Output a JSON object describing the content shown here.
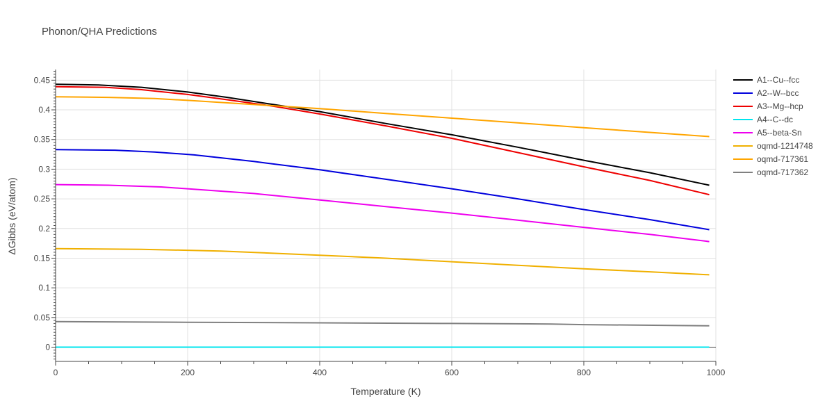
{
  "chart_data": {
    "type": "line",
    "title": "Phonon/QHA Predictions",
    "xlabel": "Temperature (K)",
    "ylabel": "ΔGibbs (eV/atom)",
    "xlim": [
      0,
      1000
    ],
    "ylim": [
      -0.024,
      0.468
    ],
    "xticks": [
      0,
      200,
      400,
      600,
      800,
      1000
    ],
    "xtick_labels": [
      "0",
      "200",
      "400",
      "600",
      "800",
      "1000"
    ],
    "yticks": [
      0,
      0.05,
      0.1,
      0.15,
      0.2,
      0.25,
      0.3,
      0.35,
      0.4,
      0.45
    ],
    "ytick_labels": [
      "0",
      "0.05",
      "0.1",
      "0.15",
      "0.2",
      "0.25",
      "0.3",
      "0.35",
      "0.4",
      "0.45"
    ],
    "grid": true,
    "legend_position": "right",
    "series": [
      {
        "name": "A1--Cu--fcc",
        "color": "#000000",
        "x": [
          0,
          65,
          130,
          200,
          260,
          330,
          400,
          500,
          600,
          700,
          800,
          900,
          990
        ],
        "y": [
          0.443,
          0.442,
          0.438,
          0.43,
          0.421,
          0.409,
          0.397,
          0.377,
          0.358,
          0.337,
          0.315,
          0.294,
          0.273
        ]
      },
      {
        "name": "A2--W--bcc",
        "color": "#0000dd",
        "x": [
          0,
          90,
          150,
          210,
          300,
          400,
          500,
          600,
          700,
          800,
          900,
          990
        ],
        "y": [
          0.333,
          0.332,
          0.329,
          0.324,
          0.313,
          0.299,
          0.283,
          0.267,
          0.25,
          0.232,
          0.215,
          0.198
        ]
      },
      {
        "name": "A3--Mg--hcp",
        "color": "#ee0000",
        "x": [
          0,
          75,
          130,
          200,
          260,
          330,
          400,
          500,
          600,
          700,
          800,
          900,
          990
        ],
        "y": [
          0.439,
          0.438,
          0.434,
          0.426,
          0.417,
          0.406,
          0.393,
          0.373,
          0.352,
          0.328,
          0.304,
          0.281,
          0.257
        ]
      },
      {
        "name": "A4--C--dc",
        "color": "#00e5ee",
        "x": [
          0,
          200,
          400,
          600,
          800,
          990
        ],
        "y": [
          0.0,
          0.0,
          0.0,
          0.0,
          0.0,
          0.0
        ]
      },
      {
        "name": "A5--beta-Sn",
        "color": "#ee00ee",
        "x": [
          0,
          80,
          160,
          250,
          300,
          400,
          500,
          600,
          700,
          800,
          900,
          990
        ],
        "y": [
          0.274,
          0.273,
          0.27,
          0.263,
          0.259,
          0.248,
          0.237,
          0.226,
          0.214,
          0.202,
          0.19,
          0.178
        ]
      },
      {
        "name": "oqmd-1214748",
        "color": "#f0b000",
        "x": [
          0,
          130,
          250,
          400,
          500,
          600,
          700,
          800,
          900,
          990
        ],
        "y": [
          0.166,
          0.165,
          0.162,
          0.155,
          0.15,
          0.144,
          0.138,
          0.132,
          0.127,
          0.122
        ]
      },
      {
        "name": "oqmd-717361",
        "color": "#ffa500",
        "x": [
          0,
          80,
          150,
          200,
          300,
          400,
          500,
          600,
          700,
          800,
          900,
          990
        ],
        "y": [
          0.422,
          0.421,
          0.419,
          0.416,
          0.409,
          0.402,
          0.394,
          0.386,
          0.378,
          0.37,
          0.362,
          0.355
        ]
      },
      {
        "name": "oqmd-717362",
        "color": "#808080",
        "x": [
          0,
          200,
          400,
          600,
          750,
          800,
          990
        ],
        "y": [
          0.043,
          0.042,
          0.041,
          0.04,
          0.039,
          0.038,
          0.036
        ]
      }
    ]
  }
}
